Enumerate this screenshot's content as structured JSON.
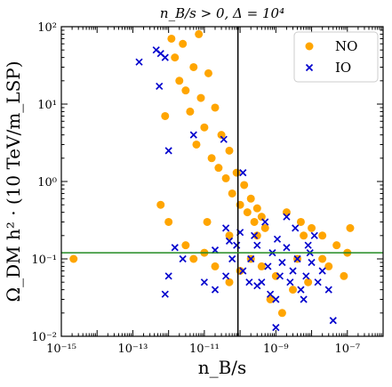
{
  "chart_data": {
    "type": "scatter",
    "title": "n_B/s > 0, Δ = 10⁴",
    "xlabel": "n_B/s",
    "ylabel": "Ω_DM h² · (10 TeV/m_LSP)",
    "xscale": "log",
    "yscale": "log",
    "xlim": [
      1e-15,
      1e-06
    ],
    "ylim": [
      0.01,
      100
    ],
    "x_ticks": [
      1e-15,
      1e-13,
      1e-11,
      1e-09,
      1e-07
    ],
    "x_tick_labels": [
      "10⁻¹⁵",
      "10⁻¹³",
      "10⁻¹¹",
      "10⁻⁹",
      "10⁻⁷"
    ],
    "y_ticks": [
      0.01,
      0.1,
      1,
      10,
      100
    ],
    "y_tick_labels": [
      "10⁻²",
      "10⁻¹",
      "10⁰",
      "10¹",
      "10²"
    ],
    "grid": false,
    "legend_position": "top-right",
    "reference_lines": [
      {
        "orientation": "vertical",
        "value": 8.7e-11,
        "color": "#000000"
      },
      {
        "orientation": "horizontal",
        "value": 0.12,
        "color": "#228B22"
      }
    ],
    "series": [
      {
        "name": "NO",
        "marker": "circle",
        "color": "#FFA500",
        "points": [
          [
            2.2e-15,
            0.1
          ],
          [
            6e-13,
            0.5
          ],
          [
            8e-13,
            7
          ],
          [
            1.2e-12,
            70
          ],
          [
            1.5e-12,
            40
          ],
          [
            2e-12,
            20
          ],
          [
            2.5e-12,
            60
          ],
          [
            3e-12,
            15
          ],
          [
            4e-12,
            8
          ],
          [
            5e-12,
            30
          ],
          [
            6e-12,
            3
          ],
          [
            7e-12,
            80
          ],
          [
            8e-12,
            12
          ],
          [
            1e-11,
            5
          ],
          [
            1.3e-11,
            25
          ],
          [
            1.6e-11,
            2
          ],
          [
            2e-11,
            9
          ],
          [
            2.5e-11,
            1.5
          ],
          [
            3e-11,
            4
          ],
          [
            4e-11,
            1.1
          ],
          [
            5e-11,
            2.5
          ],
          [
            6e-11,
            0.7
          ],
          [
            8e-11,
            1.3
          ],
          [
            1e-10,
            0.5
          ],
          [
            1.3e-10,
            0.9
          ],
          [
            1.6e-10,
            0.4
          ],
          [
            2e-10,
            0.6
          ],
          [
            2.5e-10,
            0.3
          ],
          [
            3e-10,
            0.45
          ],
          [
            4e-10,
            0.35
          ],
          [
            5e-10,
            0.25
          ],
          [
            1e-12,
            0.3
          ],
          [
            1.2e-11,
            0.3
          ],
          [
            5e-11,
            0.2
          ],
          [
            2e-09,
            0.4
          ],
          [
            5e-09,
            0.3
          ],
          [
            1e-08,
            0.25
          ],
          [
            2e-08,
            0.2
          ],
          [
            5e-08,
            0.15
          ],
          [
            1e-07,
            0.12
          ],
          [
            3e-08,
            0.08
          ],
          [
            8e-09,
            0.05
          ],
          [
            3e-09,
            0.04
          ],
          [
            1e-09,
            0.06
          ],
          [
            4e-10,
            0.08
          ],
          [
            2e-10,
            0.1
          ],
          [
            1e-10,
            0.07
          ],
          [
            5e-11,
            0.05
          ],
          [
            2e-11,
            0.08
          ],
          [
            1e-11,
            0.12
          ],
          [
            5e-12,
            0.1
          ],
          [
            3e-12,
            0.15
          ],
          [
            1.5e-09,
            0.02
          ],
          [
            7e-10,
            0.03
          ],
          [
            3e-10,
            0.2
          ],
          [
            6e-09,
            0.2
          ],
          [
            2e-08,
            0.1
          ],
          [
            8e-08,
            0.06
          ],
          [
            1.2e-07,
            0.25
          ],
          [
            4e-09,
            0.1
          ]
        ]
      },
      {
        "name": "IO",
        "marker": "x",
        "color": "#0000CD",
        "points": [
          [
            1.5e-13,
            35
          ],
          [
            4.5e-13,
            50
          ],
          [
            6e-13,
            45
          ],
          [
            8e-13,
            40
          ],
          [
            5.5e-13,
            17
          ],
          [
            1e-12,
            2.5
          ],
          [
            5e-12,
            4
          ],
          [
            3.5e-11,
            3.5
          ],
          [
            1.2e-10,
            1.3
          ],
          [
            1.5e-12,
            0.14
          ],
          [
            2.5e-12,
            0.1
          ],
          [
            1e-12,
            0.06
          ],
          [
            8e-13,
            0.035
          ],
          [
            1e-11,
            0.05
          ],
          [
            2e-11,
            0.04
          ],
          [
            4e-11,
            0.06
          ],
          [
            6e-11,
            0.1
          ],
          [
            8e-11,
            0.15
          ],
          [
            1.2e-10,
            0.07
          ],
          [
            2e-10,
            0.1
          ],
          [
            3e-10,
            0.15
          ],
          [
            4e-10,
            0.05
          ],
          [
            6e-10,
            0.08
          ],
          [
            8e-10,
            0.12
          ],
          [
            1e-09,
            0.03
          ],
          [
            1.3e-09,
            0.06
          ],
          [
            1.5e-09,
            0.09
          ],
          [
            2e-09,
            0.14
          ],
          [
            2.5e-09,
            0.05
          ],
          [
            3e-09,
            0.07
          ],
          [
            4e-09,
            0.1
          ],
          [
            5e-09,
            0.04
          ],
          [
            7e-09,
            0.06
          ],
          [
            1e-08,
            0.09
          ],
          [
            1.5e-08,
            0.05
          ],
          [
            2e-08,
            0.07
          ],
          [
            3e-08,
            0.04
          ],
          [
            4e-08,
            0.016
          ],
          [
            5e-10,
            0.3
          ],
          [
            2e-09,
            0.35
          ],
          [
            1e-10,
            0.22
          ],
          [
            5e-11,
            0.17
          ],
          [
            2e-11,
            0.13
          ],
          [
            1.8e-10,
            0.05
          ],
          [
            7e-10,
            0.035
          ],
          [
            1e-09,
            0.013
          ],
          [
            6e-09,
            0.03
          ],
          [
            9e-09,
            0.12
          ],
          [
            1.2e-08,
            0.2
          ],
          [
            2.5e-10,
            0.2
          ],
          [
            3.5e-09,
            0.25
          ],
          [
            4e-11,
            0.25
          ],
          [
            1.1e-09,
            0.18
          ],
          [
            8e-09,
            0.15
          ],
          [
            3e-10,
            0.045
          ]
        ]
      }
    ]
  }
}
